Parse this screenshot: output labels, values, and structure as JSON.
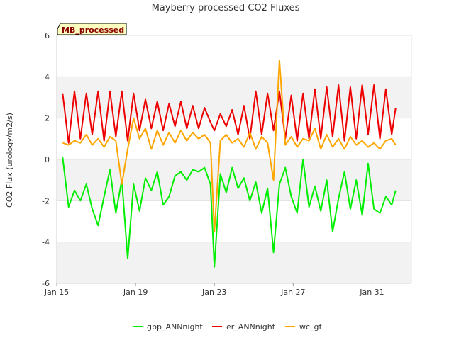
{
  "chart_data": {
    "type": "line",
    "title": "Mayberry processed CO2 Fluxes",
    "ylabel": "CO2 Flux (urology/m2/s)",
    "xlabel": "",
    "tag": "MB_processed",
    "ylim": [
      -6,
      6
    ],
    "yticks": [
      -6,
      -4,
      -2,
      0,
      2,
      4,
      6
    ],
    "xlim": [
      15,
      33
    ],
    "xticks": [
      {
        "value": 15,
        "label": "Jan 15"
      },
      {
        "value": 19,
        "label": "Jan 19"
      },
      {
        "value": 23,
        "label": "Jan 23"
      },
      {
        "value": 27,
        "label": "Jan 27"
      },
      {
        "value": 31,
        "label": "Jan 31"
      }
    ],
    "series": [
      {
        "name": "gpp_ANNnight",
        "color": "#00ee00",
        "x": [
          15.3,
          15.6,
          15.9,
          16.2,
          16.5,
          16.8,
          17.1,
          17.4,
          17.7,
          18.0,
          18.3,
          18.6,
          18.9,
          19.2,
          19.5,
          19.8,
          20.1,
          20.4,
          20.7,
          21.0,
          21.3,
          21.6,
          21.9,
          22.2,
          22.5,
          22.8,
          23.0,
          23.3,
          23.6,
          23.9,
          24.2,
          24.5,
          24.8,
          25.1,
          25.4,
          25.7,
          26.0,
          26.3,
          26.6,
          26.9,
          27.2,
          27.5,
          27.8,
          28.1,
          28.4,
          28.7,
          29.0,
          29.3,
          29.6,
          29.9,
          30.2,
          30.5,
          30.8,
          31.1,
          31.4,
          31.7,
          32.0,
          32.2
        ],
        "values": [
          0.1,
          -2.3,
          -1.5,
          -2.0,
          -1.2,
          -2.4,
          -3.2,
          -1.8,
          -0.5,
          -2.6,
          -1.0,
          -4.8,
          -1.2,
          -2.5,
          -0.9,
          -1.5,
          -0.6,
          -2.2,
          -1.8,
          -0.8,
          -0.6,
          -1.0,
          -0.5,
          -0.6,
          -0.4,
          -1.2,
          -5.2,
          -0.7,
          -1.6,
          -0.4,
          -1.4,
          -0.9,
          -2.0,
          -1.1,
          -2.6,
          -1.4,
          -4.5,
          -1.2,
          -0.4,
          -1.8,
          -2.6,
          0.0,
          -2.3,
          -1.3,
          -2.5,
          -1.0,
          -3.5,
          -1.9,
          -0.6,
          -2.4,
          -1.0,
          -2.7,
          -0.2,
          -2.4,
          -2.6,
          -1.8,
          -2.2,
          -1.5
        ]
      },
      {
        "name": "er_ANNnight",
        "color": "#ee0000",
        "x": [
          15.3,
          15.6,
          15.9,
          16.2,
          16.5,
          16.8,
          17.1,
          17.4,
          17.7,
          18.0,
          18.3,
          18.6,
          18.9,
          19.2,
          19.5,
          19.8,
          20.1,
          20.4,
          20.7,
          21.0,
          21.3,
          21.6,
          21.9,
          22.2,
          22.5,
          22.8,
          23.0,
          23.3,
          23.6,
          23.9,
          24.2,
          24.5,
          24.8,
          25.1,
          25.4,
          25.7,
          26.0,
          26.3,
          26.6,
          26.9,
          27.2,
          27.5,
          27.8,
          28.1,
          28.4,
          28.7,
          29.0,
          29.3,
          29.6,
          29.9,
          30.2,
          30.5,
          30.8,
          31.1,
          31.4,
          31.7,
          32.0,
          32.2
        ],
        "values": [
          3.2,
          0.8,
          3.3,
          1.0,
          3.2,
          1.2,
          3.3,
          0.9,
          3.3,
          1.1,
          3.3,
          0.9,
          3.2,
          1.4,
          2.9,
          1.5,
          2.8,
          1.4,
          2.7,
          1.6,
          2.8,
          1.5,
          2.6,
          1.5,
          2.5,
          1.8,
          1.4,
          2.2,
          1.6,
          2.4,
          1.2,
          2.6,
          1.0,
          3.3,
          1.2,
          3.2,
          1.4,
          3.3,
          1.0,
          3.1,
          0.9,
          3.2,
          1.0,
          3.4,
          1.0,
          3.5,
          1.1,
          3.6,
          0.9,
          3.5,
          1.0,
          3.6,
          1.2,
          3.6,
          1.0,
          3.4,
          1.2,
          2.5
        ]
      },
      {
        "name": "wc_gf",
        "color": "#ffa500",
        "x": [
          15.3,
          15.6,
          15.9,
          16.2,
          16.5,
          16.8,
          17.1,
          17.4,
          17.7,
          18.0,
          18.3,
          18.6,
          18.9,
          19.2,
          19.5,
          19.8,
          20.1,
          20.4,
          20.7,
          21.0,
          21.3,
          21.6,
          21.9,
          22.2,
          22.5,
          22.8,
          23.0,
          23.3,
          23.6,
          23.9,
          24.2,
          24.5,
          24.8,
          25.1,
          25.4,
          25.7,
          26.0,
          26.3,
          26.6,
          26.9,
          27.2,
          27.5,
          27.8,
          28.1,
          28.4,
          28.7,
          29.0,
          29.3,
          29.6,
          29.9,
          30.2,
          30.5,
          30.8,
          31.1,
          31.4,
          31.7,
          32.0,
          32.2
        ],
        "values": [
          0.8,
          0.7,
          0.9,
          0.8,
          1.2,
          0.7,
          1.0,
          0.6,
          1.1,
          0.9,
          -1.2,
          0.5,
          2.0,
          1.0,
          1.5,
          0.5,
          1.4,
          0.7,
          1.3,
          0.8,
          1.4,
          0.9,
          1.3,
          1.0,
          1.2,
          0.8,
          -3.5,
          0.9,
          1.2,
          0.8,
          1.0,
          0.6,
          1.3,
          0.5,
          1.1,
          0.8,
          -1.0,
          4.8,
          0.7,
          1.1,
          0.6,
          1.0,
          0.9,
          1.5,
          0.5,
          1.2,
          0.6,
          1.0,
          0.5,
          1.1,
          0.7,
          0.9,
          0.6,
          0.8,
          0.5,
          0.9,
          1.0,
          0.7
        ]
      }
    ]
  }
}
